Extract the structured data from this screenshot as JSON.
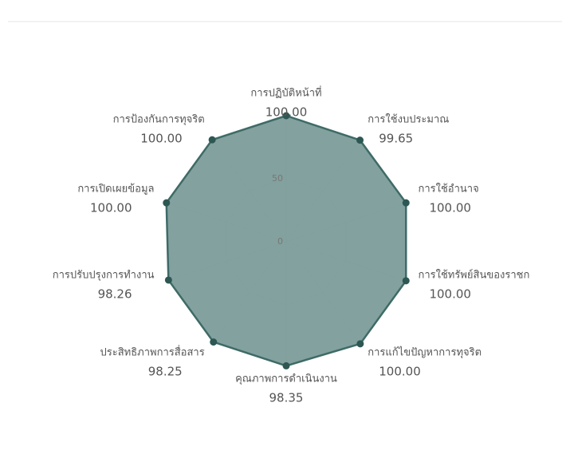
{
  "chart_data": {
    "type": "radar",
    "categories": [
      "การปฏิบัติหน้าที่",
      "การใช้งบประมาณ",
      "การใช้อำนาจ",
      "การใช้ทรัพย์สินของราชก",
      "การแก้ไขปัญหาการทุจริต",
      "คุณภาพการดำเนินงาน",
      "ประสิทธิภาพการสื่อสาร",
      "การปรับปรุงการทำงาน",
      "การเปิดเผยข้อมูล",
      "การป้องกันการทุจริต"
    ],
    "values": [
      100,
      99.65,
      100,
      100,
      100,
      98.35,
      98.25,
      98.26,
      100,
      100
    ],
    "value_labels": [
      "100.00",
      "99.65",
      "100.00",
      "100.00",
      "100.00",
      "98.35",
      "98.25",
      "98.26",
      "100.00",
      "100.00"
    ],
    "ylim": [
      0,
      100
    ],
    "yticks": [
      0,
      50
    ],
    "color": "#7c9c99",
    "line_color": "#3e6b67",
    "grid": true
  }
}
